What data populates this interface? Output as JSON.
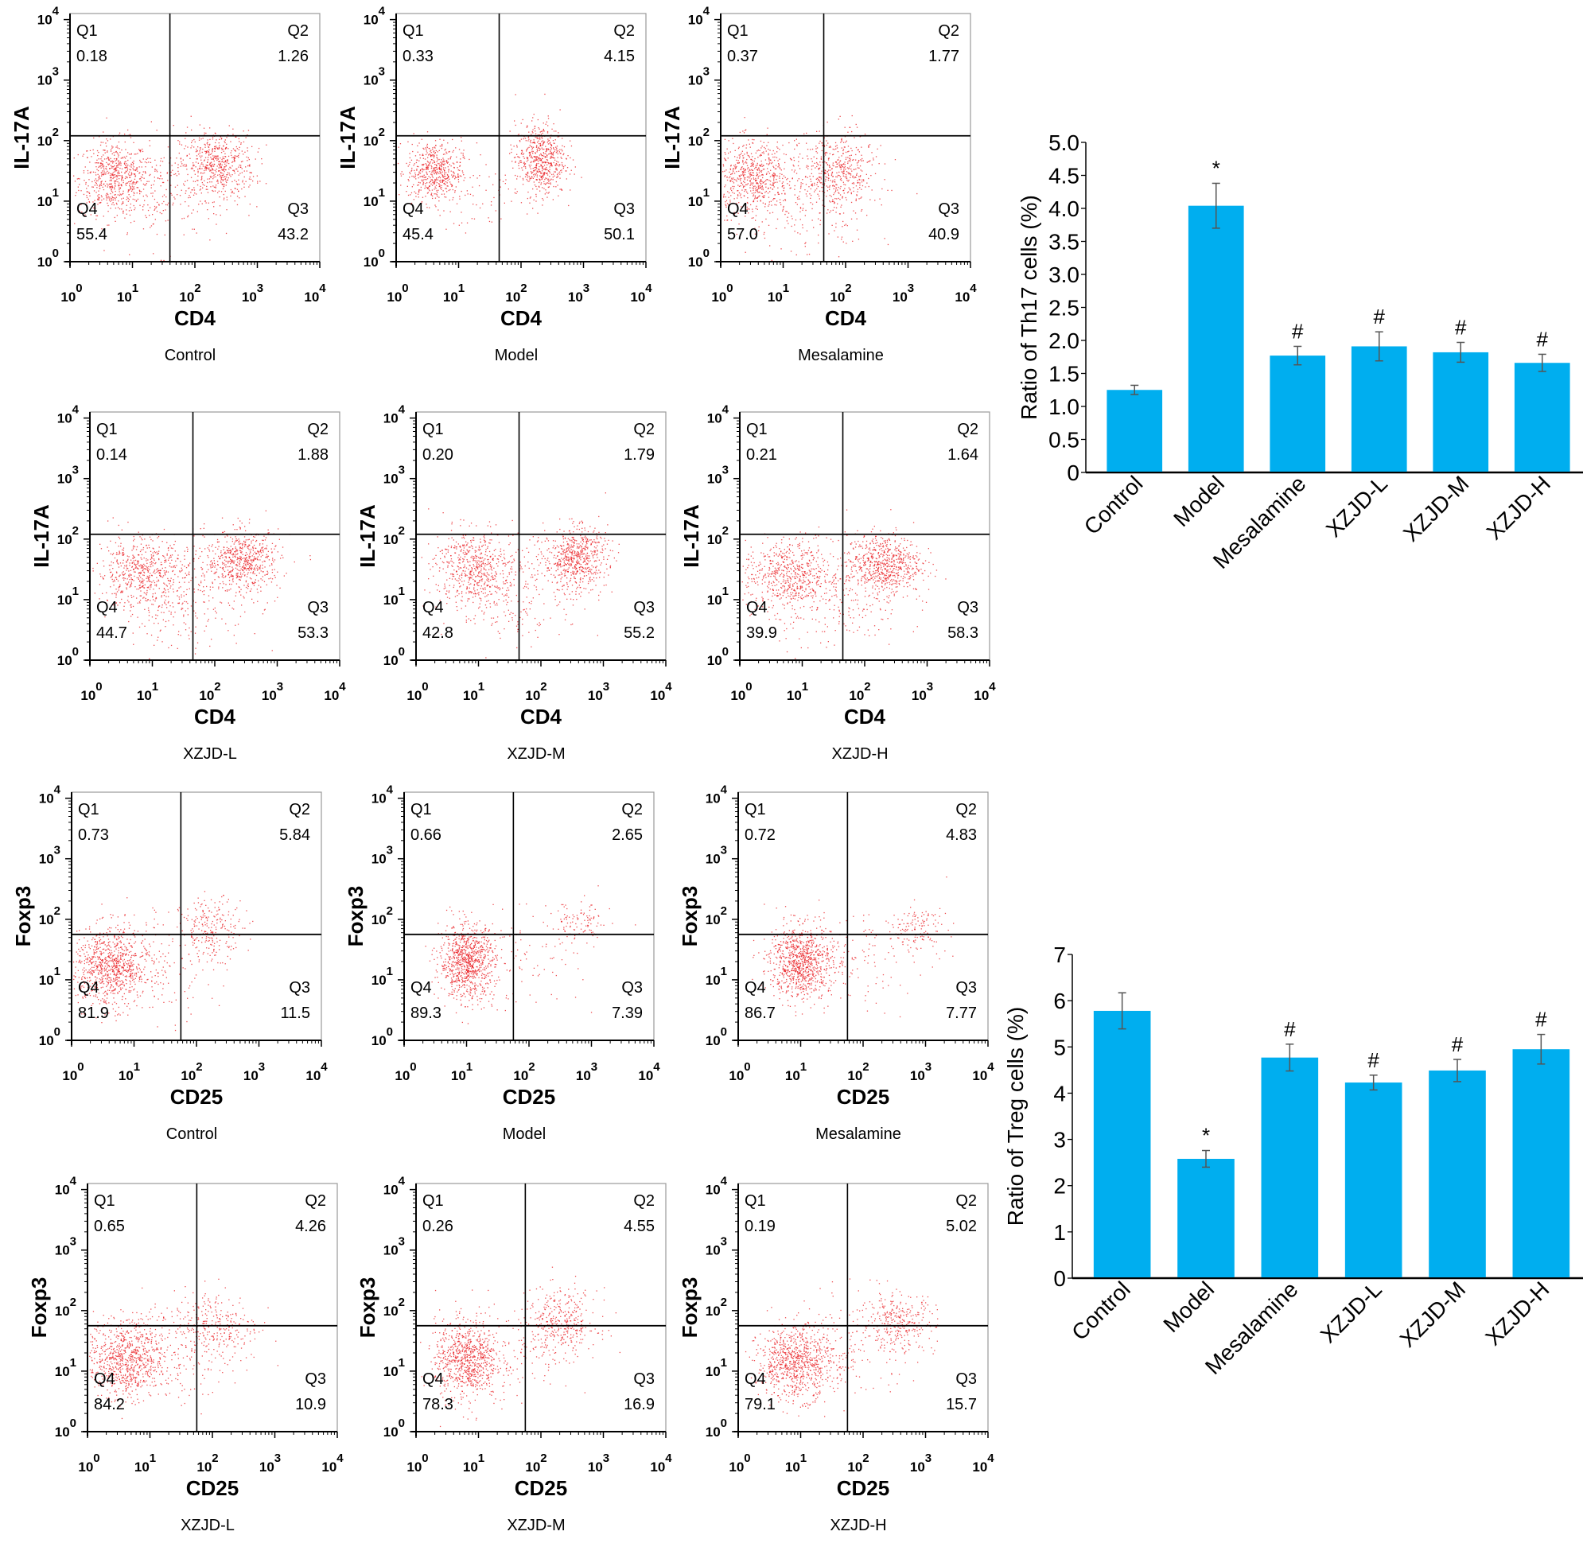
{
  "figure": {
    "dot_color": "#e8141a",
    "bar_color": "#00aeef",
    "axis_color": "#000000"
  },
  "flow_panels": {
    "th17": {
      "x_label": "CD4",
      "y_label": "IL-17A",
      "tick_labels": [
        "10",
        "10",
        "10",
        "10",
        "10"
      ],
      "tick_exponents": [
        "0",
        "1",
        "2",
        "3",
        "4"
      ],
      "quadrant_names": [
        "Q1",
        "Q2",
        "Q3",
        "Q4"
      ],
      "axis_range_decades": [
        0,
        4
      ],
      "plots": [
        {
          "group": "Control",
          "Q1": "0.18",
          "Q2": "1.26",
          "Q3": "43.2",
          "Q4": "55.4",
          "gate_x": 1.6,
          "gate_y": 2.08
        },
        {
          "group": "Model",
          "Q1": "0.33",
          "Q2": "4.15",
          "Q3": "50.1",
          "Q4": "45.4",
          "gate_x": 1.65,
          "gate_y": 2.08
        },
        {
          "group": "Mesalamine",
          "Q1": "0.37",
          "Q2": "1.77",
          "Q3": "40.9",
          "Q4": "57.0",
          "gate_x": 1.65,
          "gate_y": 2.08
        },
        {
          "group": "XZJD-L",
          "Q1": "0.14",
          "Q2": "1.88",
          "Q3": "53.3",
          "Q4": "44.7",
          "gate_x": 1.65,
          "gate_y": 2.08
        },
        {
          "group": "XZJD-M",
          "Q1": "0.20",
          "Q2": "1.79",
          "Q3": "55.2",
          "Q4": "42.8",
          "gate_x": 1.65,
          "gate_y": 2.08
        },
        {
          "group": "XZJD-H",
          "Q1": "0.21",
          "Q2": "1.64",
          "Q3": "58.3",
          "Q4": "39.9",
          "gate_x": 1.65,
          "gate_y": 2.08
        }
      ]
    },
    "treg": {
      "x_label": "CD25",
      "y_label": "Foxp3",
      "tick_labels": [
        "10",
        "10",
        "10",
        "10",
        "10"
      ],
      "tick_exponents": [
        "0",
        "1",
        "2",
        "3",
        "4"
      ],
      "quadrant_names": [
        "Q1",
        "Q2",
        "Q3",
        "Q4"
      ],
      "axis_range_decades": [
        0,
        4
      ],
      "plots": [
        {
          "group": "Control",
          "Q1": "0.73",
          "Q2": "5.84",
          "Q3": "11.5",
          "Q4": "81.9",
          "gate_x": 1.75,
          "gate_y": 1.75
        },
        {
          "group": "Model",
          "Q1": "0.66",
          "Q2": "2.65",
          "Q3": "7.39",
          "Q4": "89.3",
          "gate_x": 1.75,
          "gate_y": 1.75
        },
        {
          "group": "Mesalamine",
          "Q1": "0.72",
          "Q2": "4.83",
          "Q3": "7.77",
          "Q4": "86.7",
          "gate_x": 1.75,
          "gate_y": 1.75
        },
        {
          "group": "XZJD-L",
          "Q1": "0.65",
          "Q2": "4.26",
          "Q3": "10.9",
          "Q4": "84.2",
          "gate_x": 1.75,
          "gate_y": 1.75
        },
        {
          "group": "XZJD-M",
          "Q1": "0.26",
          "Q2": "4.55",
          "Q3": "16.9",
          "Q4": "78.3",
          "gate_x": 1.75,
          "gate_y": 1.75
        },
        {
          "group": "XZJD-H",
          "Q1": "0.19",
          "Q2": "5.02",
          "Q3": "15.7",
          "Q4": "79.1",
          "gate_x": 1.75,
          "gate_y": 1.75
        }
      ]
    }
  },
  "chart_data": [
    {
      "type": "scatter",
      "title": "Th17 flow cytometry (IL-17A vs CD4)",
      "xlabel": "CD4",
      "ylabel": "IL-17A",
      "xscale": "log",
      "xlim": [
        1,
        10000
      ],
      "ylim": [
        1,
        10000
      ],
      "panels": [
        "Control",
        "Model",
        "Mesalamine",
        "XZJD-L",
        "XZJD-M",
        "XZJD-H"
      ],
      "quadrant_percentages": {
        "Control": {
          "Q1": 0.18,
          "Q2": 1.26,
          "Q3": 43.2,
          "Q4": 55.4
        },
        "Model": {
          "Q1": 0.33,
          "Q2": 4.15,
          "Q3": 50.1,
          "Q4": 45.4
        },
        "Mesalamine": {
          "Q1": 0.37,
          "Q2": 1.77,
          "Q3": 40.9,
          "Q4": 57.0
        },
        "XZJD-L": {
          "Q1": 0.14,
          "Q2": 1.88,
          "Q3": 53.3,
          "Q4": 44.7
        },
        "XZJD-M": {
          "Q1": 0.2,
          "Q2": 1.79,
          "Q3": 55.2,
          "Q4": 42.8
        },
        "XZJD-H": {
          "Q1": 0.21,
          "Q2": 1.64,
          "Q3": 58.3,
          "Q4": 39.9
        }
      }
    },
    {
      "type": "bar",
      "title": "",
      "categories": [
        "Control",
        "Model",
        "Mesalamine",
        "XZJD-L",
        "XZJD-M",
        "XZJD-H"
      ],
      "values": [
        1.25,
        4.04,
        1.77,
        1.91,
        1.82,
        1.66
      ],
      "error": [
        0.07,
        0.34,
        0.14,
        0.22,
        0.15,
        0.13
      ],
      "annotations": [
        "",
        "*",
        "#",
        "#",
        "#",
        "#"
      ],
      "xlabel": "",
      "ylabel": "Ratio of Th17 cells (%)",
      "ylim": [
        0,
        5.0
      ],
      "yticks": [
        "0",
        "0.5",
        "1.0",
        "1.5",
        "2.0",
        "2.5",
        "3.0",
        "3.5",
        "4.0",
        "4.5",
        "5.0"
      ],
      "grid": false,
      "legend": "none"
    },
    {
      "type": "scatter",
      "title": "Treg flow cytometry (Foxp3 vs CD25)",
      "xlabel": "CD25",
      "ylabel": "Foxp3",
      "xscale": "log",
      "xlim": [
        1,
        10000
      ],
      "ylim": [
        1,
        10000
      ],
      "panels": [
        "Control",
        "Model",
        "Mesalamine",
        "XZJD-L",
        "XZJD-M",
        "XZJD-H"
      ],
      "quadrant_percentages": {
        "Control": {
          "Q1": 0.73,
          "Q2": 5.84,
          "Q3": 11.5,
          "Q4": 81.9
        },
        "Model": {
          "Q1": 0.66,
          "Q2": 2.65,
          "Q3": 7.39,
          "Q4": 89.3
        },
        "Mesalamine": {
          "Q1": 0.72,
          "Q2": 4.83,
          "Q3": 7.77,
          "Q4": 86.7
        },
        "XZJD-L": {
          "Q1": 0.65,
          "Q2": 4.26,
          "Q3": 10.9,
          "Q4": 84.2
        },
        "XZJD-M": {
          "Q1": 0.26,
          "Q2": 4.55,
          "Q3": 16.9,
          "Q4": 78.3
        },
        "XZJD-H": {
          "Q1": 0.19,
          "Q2": 5.02,
          "Q3": 15.7,
          "Q4": 79.1
        }
      }
    },
    {
      "type": "bar",
      "title": "",
      "categories": [
        "Control",
        "Model",
        "Mesalamine",
        "XZJD-L",
        "XZJD-M",
        "XZJD-H"
      ],
      "values": [
        5.78,
        2.58,
        4.77,
        4.23,
        4.49,
        4.95
      ],
      "error": [
        0.39,
        0.18,
        0.29,
        0.16,
        0.24,
        0.32
      ],
      "annotations": [
        "",
        "*",
        "#",
        "#",
        "#",
        "#"
      ],
      "xlabel": "",
      "ylabel": "Ratio of Treg cells (%)",
      "ylim": [
        0,
        7
      ],
      "yticks": [
        "0",
        "1",
        "2",
        "3",
        "4",
        "5",
        "6",
        "7"
      ],
      "grid": false,
      "legend": "none"
    }
  ]
}
